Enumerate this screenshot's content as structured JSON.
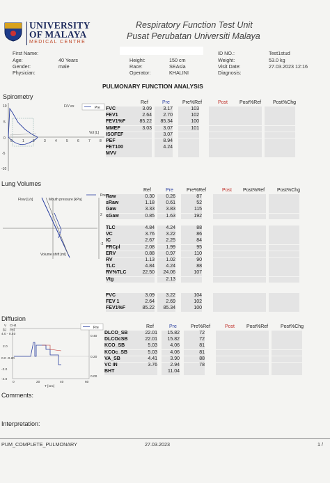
{
  "header": {
    "uni_line1": "UNIVERSITY",
    "uni_line2": "OF MALAYA",
    "uni_line3": "MEDICAL CENTRE",
    "title_en": "Respiratory Function Test Unit",
    "title_my": "Pusat Perubatan Universiti Malaya"
  },
  "patient": {
    "first_name_label": "First Name:",
    "age_label": "Age:",
    "age": "40 Years",
    "gender_label": "Gender:",
    "gender": "male",
    "physician_label": "Physician:",
    "height_label": "Height:",
    "height": "150 cm",
    "race_label": "Race:",
    "race": "SEAsia",
    "operator_label": "Operator:",
    "operator": "KHALINI",
    "id_label": "ID NO.:",
    "id": "Test1stud",
    "weight_label": "Weight:",
    "weight": "53.0 kg",
    "visit_label": "Visit Date:",
    "visit": "27.03.2023 12:16",
    "diagnosis_label": "Diagnosis:"
  },
  "report_title": "PULMONARY FUNCTION ANALYSIS",
  "columns": {
    "ref": "Ref",
    "pre": "Pre",
    "pre_ref": "Pre%Ref",
    "post": "Post",
    "post_ref": "Post%Ref",
    "post_chg": "Post%Chg"
  },
  "spirometry": {
    "title": "Spirometry",
    "graph_label": "F/V ex",
    "legend": "Pre",
    "vol_label": "Vol [L]",
    "y_ticks": [
      "10",
      "5",
      "0",
      "-5",
      "-10"
    ],
    "x_ticks": [
      "0",
      "1",
      "2",
      "3",
      "4",
      "5",
      "6",
      "7",
      "8"
    ],
    "rows": [
      {
        "label": "FVC",
        "ref": "3.09",
        "pre": "3.17",
        "pct": "103"
      },
      {
        "label": "FEV1",
        "ref": "2.64",
        "pre": "2.70",
        "pct": "102"
      },
      {
        "label": "FEV1%F",
        "ref": "85.22",
        "pre": "85.34",
        "pct": "100"
      },
      {
        "label": "MMEF",
        "ref": "3.03",
        "pre": "3.07",
        "pct": "101"
      },
      {
        "label": "ISOFEF",
        "ref": "",
        "pre": "3.07",
        "pct": ""
      },
      {
        "label": "PEF",
        "ref": "",
        "pre": "8.94",
        "pct": ""
      },
      {
        "label": "FET100",
        "ref": "",
        "pre": "4.24",
        "pct": ""
      },
      {
        "label": "MVV",
        "ref": "",
        "pre": "",
        "pct": ""
      }
    ]
  },
  "lung_volumes": {
    "title": "Lung Volumes",
    "legend": "Pre",
    "flow_label": "Flow [L/s]",
    "mouth_label": "Mouth pressure [kPa]",
    "vol_shift_label": "Volume shift [ml]",
    "y_ticks": [
      "2",
      "-2"
    ],
    "rows_a": [
      {
        "label": "Raw",
        "ref": "0.30",
        "pre": "0.26",
        "pct": "87"
      },
      {
        "label": "sRaw",
        "ref": "1.18",
        "pre": "0.61",
        "pct": "52"
      },
      {
        "label": "Gaw",
        "ref": "3.33",
        "pre": "3.83",
        "pct": "115"
      },
      {
        "label": "sGaw",
        "ref": "0.85",
        "pre": "1.63",
        "pct": "192"
      }
    ],
    "rows_b": [
      {
        "label": "TLC",
        "ref": "4.84",
        "pre": "4.24",
        "pct": "88"
      },
      {
        "label": "VC",
        "ref": "3.76",
        "pre": "3.22",
        "pct": "86"
      },
      {
        "label": "IC",
        "ref": "2.67",
        "pre": "2.25",
        "pct": "84"
      },
      {
        "label": "FRCpl",
        "ref": "2.08",
        "pre": "1.99",
        "pct": "95"
      },
      {
        "label": "ERV",
        "ref": "0.88",
        "pre": "0.97",
        "pct": "110"
      },
      {
        "label": "RV",
        "ref": "1.13",
        "pre": "1.02",
        "pct": "90"
      },
      {
        "label": "TLC",
        "ref": "4.84",
        "pre": "4.24",
        "pct": "88"
      },
      {
        "label": "RV%TLC",
        "ref": "22.50",
        "pre": "24.06",
        "pct": "107"
      },
      {
        "label": "Vtg",
        "ref": "",
        "pre": "2.13",
        "pct": ""
      }
    ],
    "rows_c": [
      {
        "label": "FVC",
        "ref": "3.09",
        "pre": "3.22",
        "pct": "104"
      },
      {
        "label": "FEV 1",
        "ref": "2.64",
        "pre": "2.69",
        "pct": "102"
      },
      {
        "label": "FEV1%F",
        "ref": "85.22",
        "pre": "85.34",
        "pct": "100"
      }
    ]
  },
  "diffusion": {
    "title": "Diffusion",
    "axis_v": "V",
    "axis_ch4": "CH4",
    "axis_l": "[L]",
    "axis_pct": "[%]",
    "y_top": "4.0 - 0.40",
    "y_ticks": [
      "2.0",
      "0.0 -0.20",
      "-2.0",
      "-4.0"
    ],
    "right_ticks": [
      "0.40",
      "0.20",
      "0.00"
    ],
    "x_ticks": [
      "0",
      "20",
      "40",
      "60"
    ],
    "x_label": "T [sec]",
    "legend": "Pre",
    "rows": [
      {
        "label": "DLCO_SB",
        "ref": "22.01",
        "pre": "15.82",
        "pct": "72"
      },
      {
        "label": "DLCOcSB",
        "ref": "22.01",
        "pre": "15.82",
        "pct": "72"
      },
      {
        "label": "KCO_SB",
        "ref": "5.03",
        "pre": "4.06",
        "pct": "81"
      },
      {
        "label": "KCOc_SB",
        "ref": "5.03",
        "pre": "4.06",
        "pct": "81"
      },
      {
        "label": "VA_SB",
        "ref": "4.41",
        "pre": "3.90",
        "pct": "88"
      },
      {
        "label": "VC IN",
        "ref": "3.76",
        "pre": "2.94",
        "pct": "78"
      },
      {
        "label": "BHT",
        "ref": "",
        "pre": "11.04",
        "pct": ""
      }
    ]
  },
  "comments_label": "Comments:",
  "interpretation_label": "Interpretation:",
  "footer": {
    "template": "PUM_COMPLETE_PULMONARY",
    "date": "27.03.2023",
    "page": "1 /"
  }
}
